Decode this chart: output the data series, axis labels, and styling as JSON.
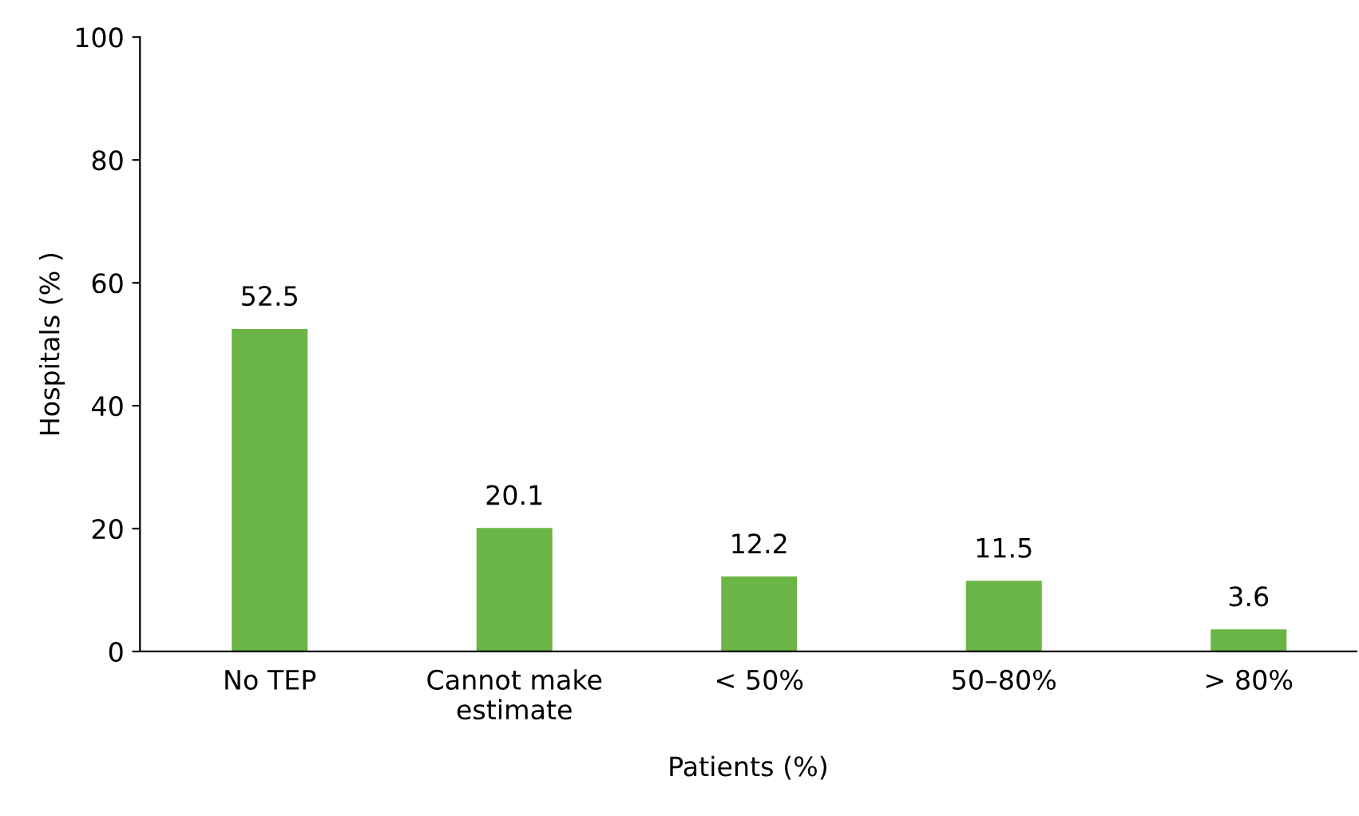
{
  "chart_data": {
    "type": "bar",
    "xlabel": "Patients (%)",
    "ylabel": "Hospitals (% )",
    "categories": [
      "No TEP",
      "Cannot make\nestimate",
      "< 50%",
      "50–80%",
      "> 80%"
    ],
    "values": [
      52.5,
      20.1,
      12.2,
      11.5,
      3.6
    ],
    "color": "#6ab545",
    "ylim": [
      0,
      100
    ],
    "yticks": [
      0,
      20,
      40,
      60,
      80,
      100
    ],
    "data_labels": true,
    "grid": false,
    "legend": false
  }
}
